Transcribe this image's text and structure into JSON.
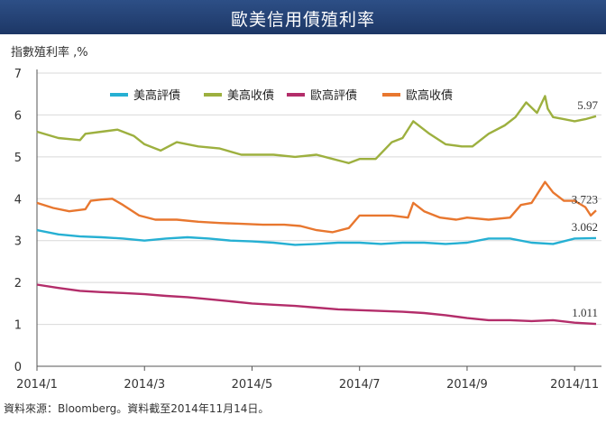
{
  "header": {
    "title": "歐美信用債殖利率"
  },
  "source": "資料來源：Bloomberg。資料截至2014年11月14日。",
  "colors": {
    "title_bar": "#2a4b80",
    "axis": "#555555"
  },
  "chart_data": {
    "type": "line",
    "title": "歐美信用債殖利率",
    "ylabel": "指數殖利率 ,%",
    "xlabel": "",
    "ylim": [
      0,
      7
    ],
    "yticks": [
      0,
      1,
      2,
      3,
      4,
      5,
      6,
      7
    ],
    "x_range": [
      0,
      10.5
    ],
    "x_tick_positions": [
      0,
      2,
      4,
      6,
      8,
      10
    ],
    "x_tick_labels": [
      "2014/1",
      "2014/3",
      "2014/5",
      "2014/7",
      "2014/9",
      "2014/11"
    ],
    "grid": "horizontal",
    "legend": "top-center",
    "series": [
      {
        "name": "美高評債",
        "color": "#26b0d3",
        "end_label": "3.062",
        "x": [
          0,
          0.4,
          0.8,
          1.2,
          1.6,
          2.0,
          2.4,
          2.8,
          3.2,
          3.6,
          4.0,
          4.4,
          4.8,
          5.2,
          5.6,
          6.0,
          6.4,
          6.8,
          7.2,
          7.6,
          8.0,
          8.4,
          8.8,
          9.2,
          9.6,
          10.0,
          10.4
        ],
        "values": [
          3.25,
          3.15,
          3.1,
          3.08,
          3.05,
          3.0,
          3.05,
          3.08,
          3.05,
          3.0,
          2.98,
          2.95,
          2.9,
          2.92,
          2.95,
          2.95,
          2.92,
          2.95,
          2.95,
          2.92,
          2.95,
          3.05,
          3.05,
          2.95,
          2.92,
          3.05,
          3.06
        ]
      },
      {
        "name": "美高收債",
        "color": "#9db03f",
        "end_label": "5.97",
        "x": [
          0,
          0.4,
          0.8,
          0.9,
          1.2,
          1.5,
          1.8,
          2.0,
          2.3,
          2.6,
          3.0,
          3.4,
          3.8,
          4.0,
          4.4,
          4.8,
          5.2,
          5.5,
          5.8,
          6.0,
          6.3,
          6.6,
          6.8,
          7.0,
          7.3,
          7.6,
          7.9,
          8.1,
          8.4,
          8.7,
          8.9,
          9.1,
          9.3,
          9.45,
          9.5,
          9.6,
          9.8,
          10.0,
          10.2,
          10.4
        ],
        "values": [
          5.6,
          5.45,
          5.4,
          5.55,
          5.6,
          5.65,
          5.5,
          5.3,
          5.15,
          5.35,
          5.25,
          5.2,
          5.05,
          5.05,
          5.05,
          5.0,
          5.05,
          4.95,
          4.85,
          4.95,
          4.95,
          5.35,
          5.45,
          5.85,
          5.55,
          5.3,
          5.25,
          5.25,
          5.55,
          5.75,
          5.95,
          6.3,
          6.05,
          6.45,
          6.15,
          5.95,
          5.9,
          5.85,
          5.9,
          5.97
        ]
      },
      {
        "name": "歐高評債",
        "color": "#b32d6a",
        "end_label": "1.011",
        "x": [
          0,
          0.4,
          0.8,
          1.2,
          1.6,
          2.0,
          2.4,
          2.8,
          3.2,
          3.6,
          4.0,
          4.4,
          4.8,
          5.2,
          5.6,
          6.0,
          6.4,
          6.8,
          7.2,
          7.6,
          8.0,
          8.4,
          8.8,
          9.2,
          9.6,
          10.0,
          10.4
        ],
        "values": [
          1.95,
          1.87,
          1.8,
          1.77,
          1.75,
          1.72,
          1.68,
          1.65,
          1.6,
          1.55,
          1.5,
          1.47,
          1.44,
          1.4,
          1.36,
          1.34,
          1.32,
          1.3,
          1.27,
          1.22,
          1.15,
          1.1,
          1.1,
          1.08,
          1.1,
          1.04,
          1.01
        ]
      },
      {
        "name": "歐高收債",
        "color": "#e8772f",
        "end_label": "3.723",
        "x": [
          0,
          0.3,
          0.6,
          0.9,
          1.0,
          1.2,
          1.4,
          1.6,
          1.9,
          2.2,
          2.6,
          3.0,
          3.4,
          3.8,
          4.2,
          4.6,
          4.9,
          5.2,
          5.5,
          5.8,
          6.0,
          6.3,
          6.6,
          6.9,
          7.0,
          7.2,
          7.5,
          7.8,
          8.0,
          8.4,
          8.8,
          9.0,
          9.2,
          9.45,
          9.6,
          9.8,
          10.0,
          10.2,
          10.3,
          10.4
        ],
        "values": [
          3.9,
          3.78,
          3.7,
          3.75,
          3.95,
          3.98,
          4.0,
          3.85,
          3.6,
          3.5,
          3.5,
          3.45,
          3.42,
          3.4,
          3.38,
          3.38,
          3.35,
          3.25,
          3.2,
          3.3,
          3.6,
          3.6,
          3.6,
          3.55,
          3.9,
          3.7,
          3.55,
          3.5,
          3.55,
          3.5,
          3.55,
          3.85,
          3.9,
          4.4,
          4.15,
          3.95,
          3.95,
          3.8,
          3.6,
          3.72
        ]
      }
    ]
  }
}
